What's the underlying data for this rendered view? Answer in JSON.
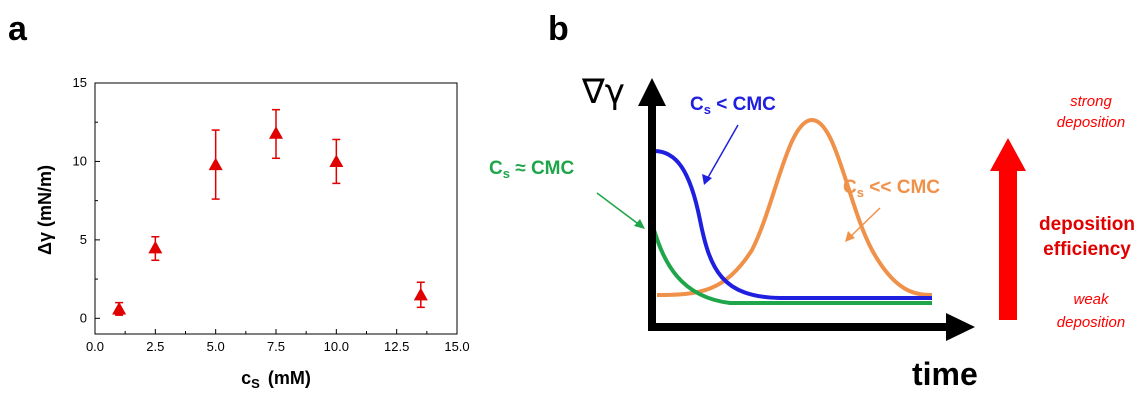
{
  "panel_a": {
    "letter": "a",
    "xlabel": "c",
    "xlabel_sub": "S",
    "xlabel_unit": "(mM)",
    "ylabel": "Δγ (mN/m)",
    "xticks": [
      "0.0",
      "2.5",
      "5.0",
      "7.5",
      "10.0",
      "12.5",
      "15.0"
    ],
    "yticks": [
      "0",
      "5",
      "10",
      "15"
    ]
  },
  "panel_b": {
    "letter": "b",
    "ylabel": "∇γ",
    "xlabel": "time",
    "curves": {
      "blue": {
        "label_c": "C",
        "label_sub": "s",
        "label_rest": " < CMC",
        "color": "#1f1fe0"
      },
      "green": {
        "label_c": "C",
        "label_sub": "s",
        "label_rest": " ≈ CMC",
        "color": "#1fa54a"
      },
      "orange": {
        "label_c": "C",
        "label_sub": "s",
        "label_rest": " << CMC",
        "color": "#f0914a"
      }
    },
    "arrow": {
      "top_line1": "strong",
      "top_line2": "deposition",
      "mid_line1": "deposition",
      "mid_line2": "efficiency",
      "bottom_line1": "weak",
      "bottom_line2": "deposition",
      "color": "#ff0000"
    }
  },
  "chart_data": [
    {
      "type": "scatter",
      "title": "",
      "xlabel": "cS (mM)",
      "ylabel": "Δγ (mN/m)",
      "xlim": [
        0,
        15
      ],
      "ylim": [
        -1,
        15
      ],
      "grid": false,
      "marker": "triangle",
      "color": "#e00000",
      "x": [
        1.0,
        2.5,
        5.0,
        7.5,
        10.0,
        13.5
      ],
      "y": [
        0.6,
        4.5,
        9.8,
        11.8,
        10.0,
        1.5
      ],
      "error_low": [
        0.4,
        0.8,
        2.2,
        1.6,
        1.4,
        0.8
      ],
      "error_high": [
        0.4,
        0.7,
        2.2,
        1.5,
        1.4,
        0.8
      ]
    }
  ]
}
